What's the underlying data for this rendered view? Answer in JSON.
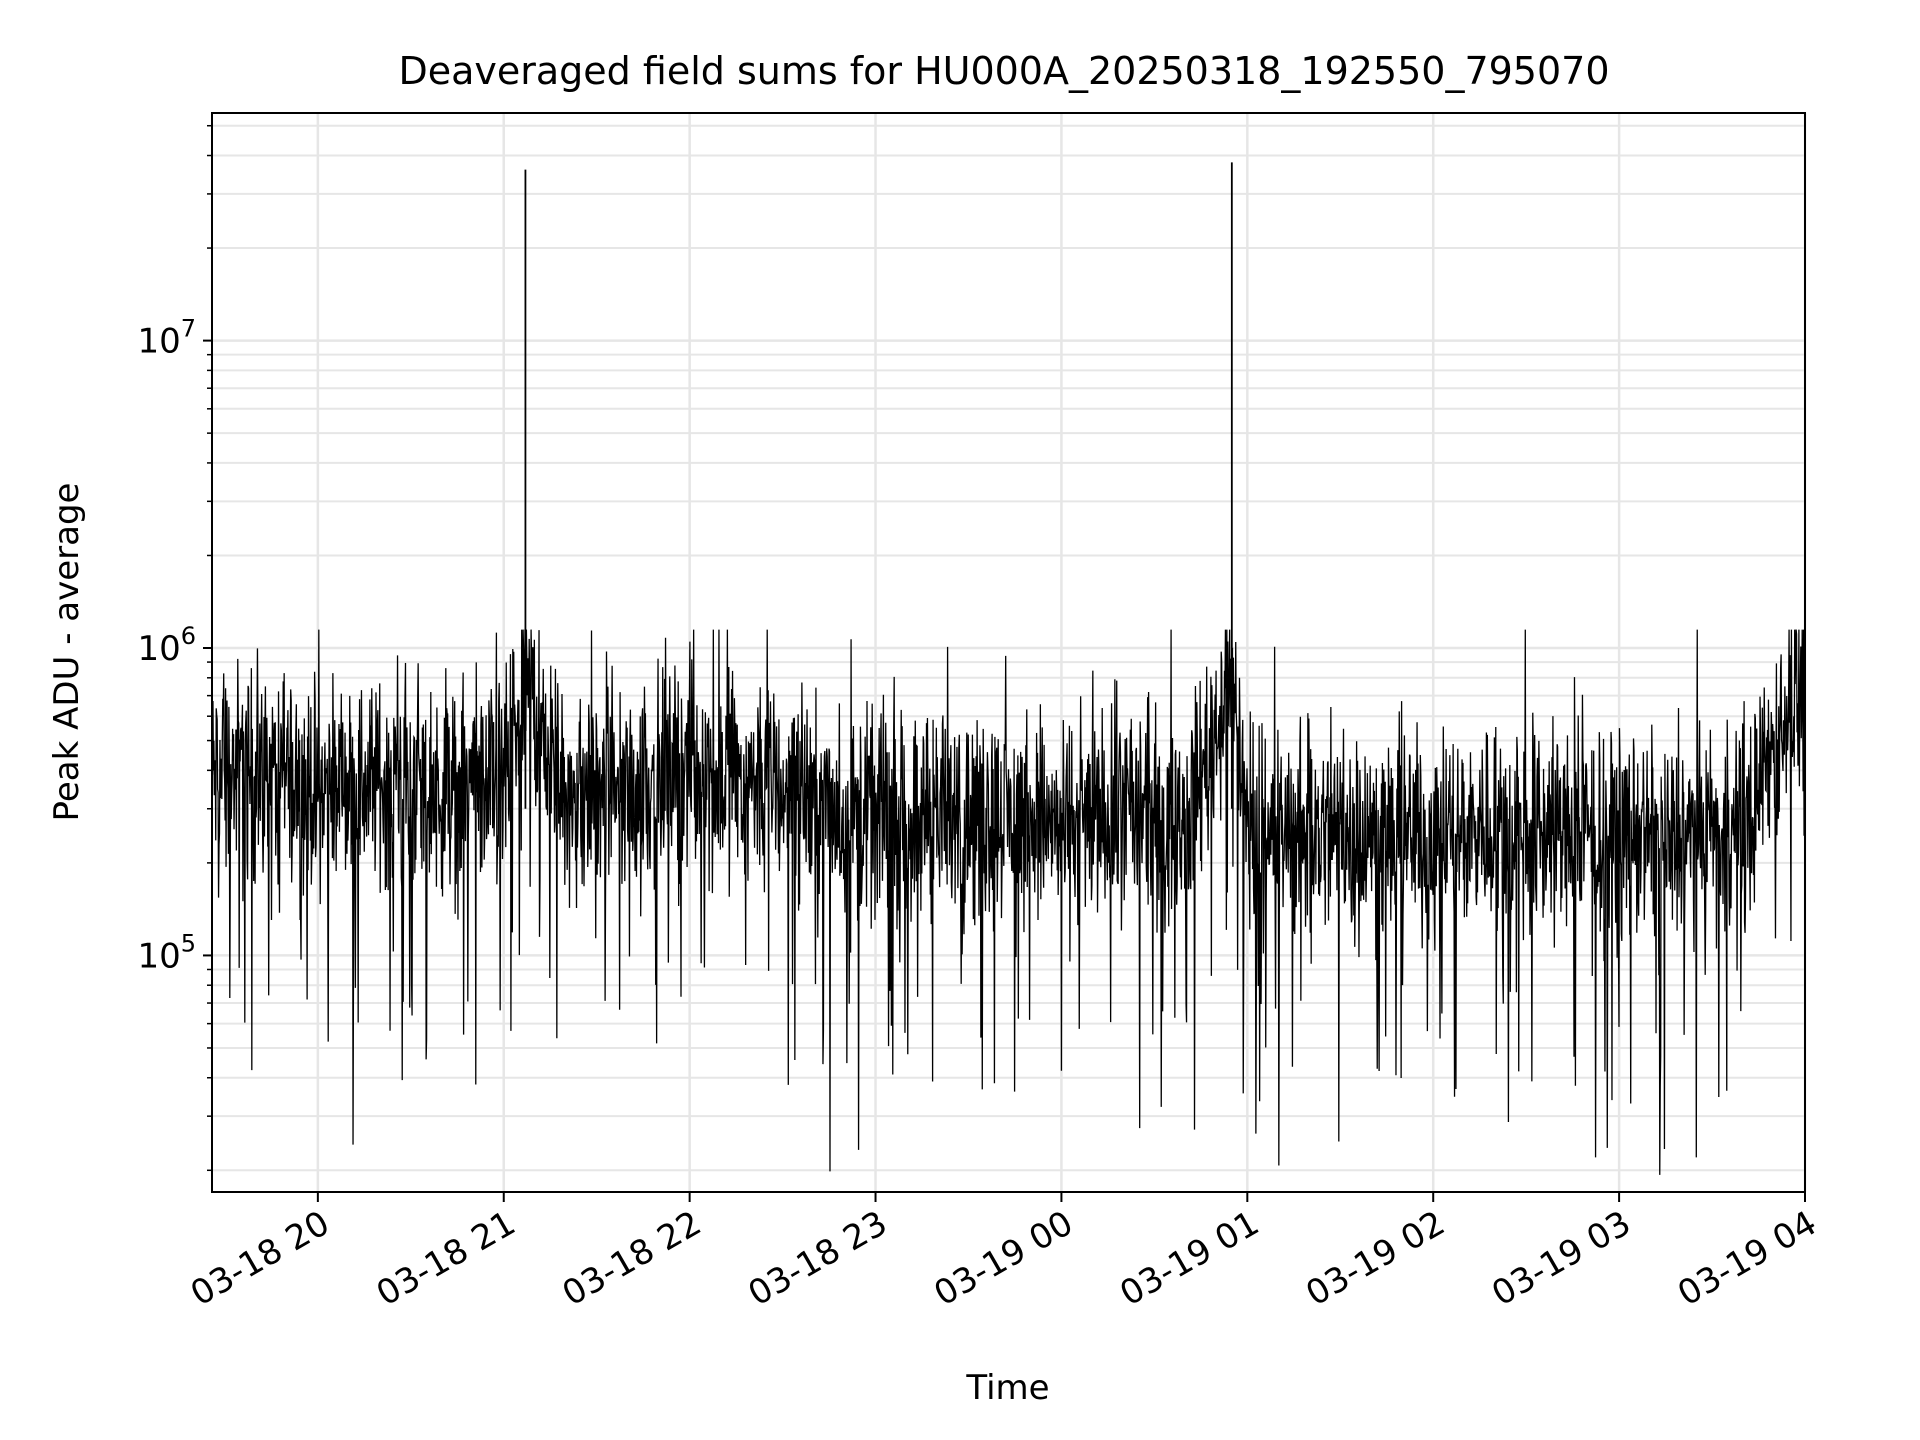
{
  "chart_data": {
    "type": "line",
    "title": "Deaveraged field sums for HU000A_20250318_192550_795070",
    "xlabel": "Time",
    "ylabel": "Peak ADU - average",
    "y_scale": "log",
    "ylim": [
      17000,
      55000000
    ],
    "xlim": [
      "2025-03-18 19:25:50",
      "2025-03-19 04:00:00"
    ],
    "x_tick_labels": [
      "03-18 20",
      "03-18 21",
      "03-18 22",
      "03-18 23",
      "03-19 00",
      "03-19 01",
      "03-19 02",
      "03-19 03",
      "03-19 04"
    ],
    "y_tick_labels": [
      {
        "base": "10",
        "exp": "5"
      },
      {
        "base": "10",
        "exp": "6"
      },
      {
        "base": "10",
        "exp": "7"
      }
    ],
    "grid": true,
    "line_color": "#000000",
    "grid_color": "#e6e6e6",
    "series": [
      {
        "x": [
          "2025-03-18 19:26",
          "2025-03-18 19:40",
          "2025-03-18 20:00",
          "2025-03-18 20:20",
          "2025-03-18 20:40",
          "2025-03-18 21:00",
          "2025-03-18 21:07",
          "2025-03-18 21:20",
          "2025-03-18 21:40",
          "2025-03-18 22:00",
          "2025-03-18 22:20",
          "2025-03-18 22:40",
          "2025-03-18 23:00",
          "2025-03-18 23:20",
          "2025-03-18 23:40",
          "2025-03-19 00:00",
          "2025-03-19 00:20",
          "2025-03-19 00:40",
          "2025-03-19 00:55",
          "2025-03-19 01:00",
          "2025-03-19 01:20",
          "2025-03-19 01:40",
          "2025-03-19 02:00",
          "2025-03-19 02:20",
          "2025-03-19 02:40",
          "2025-03-19 03:00",
          "2025-03-19 03:20",
          "2025-03-19 03:40",
          "2025-03-19 03:50",
          "2025-03-19 04:00"
        ],
        "y": [
          380000,
          400000,
          340000,
          370000,
          330000,
          350000,
          36000000,
          320000,
          340000,
          420000,
          380000,
          310000,
          270000,
          280000,
          290000,
          260000,
          290000,
          270000,
          38000000,
          240000,
          250000,
          240000,
          250000,
          260000,
          250000,
          250000,
          240000,
          240000,
          520000,
          800000
        ]
      }
    ]
  }
}
